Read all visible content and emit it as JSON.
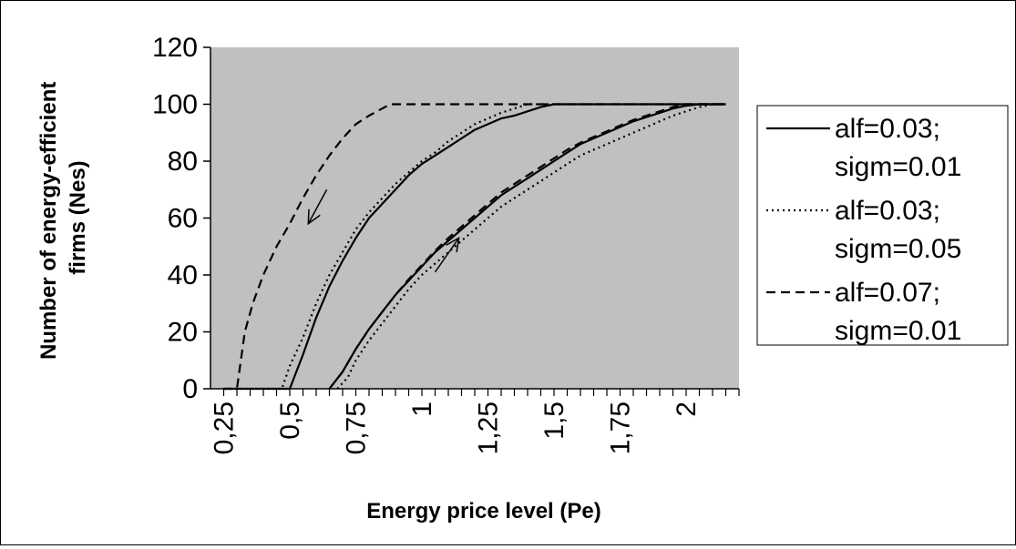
{
  "chart_data": {
    "type": "line",
    "xlabel": "Energy price level (Pe)",
    "ylabel": "Number of energy-efficient firms (Nes)",
    "ylim": [
      0,
      120
    ],
    "y_ticks": [
      "0",
      "20",
      "40",
      "60",
      "80",
      "100",
      "120"
    ],
    "x_tick_labels": [
      {
        "value": 0.25,
        "label": "0,25"
      },
      {
        "value": 0.5,
        "label": "0,5"
      },
      {
        "value": 0.75,
        "label": "0,75"
      },
      {
        "value": 1.0,
        "label": "1"
      },
      {
        "value": 1.25,
        "label": "1,25"
      },
      {
        "value": 1.5,
        "label": "1,5"
      },
      {
        "value": 1.75,
        "label": "1,75"
      },
      {
        "value": 2.0,
        "label": "2"
      }
    ],
    "xlim": [
      0.2,
      2.2
    ],
    "grid": false,
    "plot_background": "#c0c0c0",
    "legend_position": "right",
    "series": [
      {
        "name": "alf=0.03; sigm=0.01",
        "legend_lines": [
          "alf=0.03;",
          "sigm=0.01"
        ],
        "style": "solid",
        "color": "#000000",
        "curves": [
          [
            [
              0.25,
              0
            ],
            [
              0.5,
              0
            ],
            [
              0.55,
              12
            ],
            [
              0.6,
              25
            ],
            [
              0.65,
              36
            ],
            [
              0.7,
              45
            ],
            [
              0.75,
              53
            ],
            [
              0.8,
              60
            ],
            [
              0.85,
              65
            ],
            [
              0.9,
              70
            ],
            [
              0.95,
              75
            ],
            [
              1.0,
              79
            ],
            [
              1.05,
              82
            ],
            [
              1.1,
              85
            ],
            [
              1.15,
              88
            ],
            [
              1.2,
              91
            ],
            [
              1.25,
              93
            ],
            [
              1.3,
              95
            ],
            [
              1.35,
              96
            ],
            [
              1.4,
              97.5
            ],
            [
              1.45,
              99
            ],
            [
              1.5,
              100
            ],
            [
              2.15,
              100
            ]
          ],
          [
            [
              0.65,
              0
            ],
            [
              0.7,
              6
            ],
            [
              0.75,
              14
            ],
            [
              0.8,
              21
            ],
            [
              0.85,
              27
            ],
            [
              0.9,
              33
            ],
            [
              0.95,
              38
            ],
            [
              1.0,
              43
            ],
            [
              1.05,
              48
            ],
            [
              1.1,
              52
            ],
            [
              1.15,
              56
            ],
            [
              1.2,
              60
            ],
            [
              1.25,
              64
            ],
            [
              1.3,
              68
            ],
            [
              1.35,
              71
            ],
            [
              1.4,
              74
            ],
            [
              1.45,
              77
            ],
            [
              1.5,
              80
            ],
            [
              1.55,
              83
            ],
            [
              1.6,
              86
            ],
            [
              1.65,
              88
            ],
            [
              1.7,
              90
            ],
            [
              1.75,
              92
            ],
            [
              1.8,
              94
            ],
            [
              1.85,
              95.5
            ],
            [
              1.9,
              97
            ],
            [
              1.95,
              98.5
            ],
            [
              2.0,
              99.5
            ],
            [
              2.05,
              100
            ],
            [
              2.15,
              100
            ]
          ]
        ]
      },
      {
        "name": "alf=0.03; sigm=0.05",
        "legend_lines": [
          "alf=0.03;",
          "sigm=0.05"
        ],
        "style": "dotted",
        "color": "#000000",
        "curves": [
          [
            [
              0.25,
              0
            ],
            [
              0.47,
              0
            ],
            [
              0.5,
              8
            ],
            [
              0.55,
              18
            ],
            [
              0.6,
              30
            ],
            [
              0.65,
              40
            ],
            [
              0.7,
              48
            ],
            [
              0.75,
              56
            ],
            [
              0.8,
              62
            ],
            [
              0.85,
              67
            ],
            [
              0.9,
              72
            ],
            [
              0.95,
              76
            ],
            [
              1.0,
              80
            ],
            [
              1.05,
              83
            ],
            [
              1.1,
              87
            ],
            [
              1.15,
              90
            ],
            [
              1.2,
              93
            ],
            [
              1.25,
              95
            ],
            [
              1.3,
              97
            ],
            [
              1.35,
              98.5
            ],
            [
              1.4,
              100
            ],
            [
              2.15,
              100
            ]
          ],
          [
            [
              0.68,
              0
            ],
            [
              0.72,
              4
            ],
            [
              0.75,
              10
            ],
            [
              0.8,
              17
            ],
            [
              0.85,
              23
            ],
            [
              0.9,
              29
            ],
            [
              0.95,
              35
            ],
            [
              1.0,
              40
            ],
            [
              1.05,
              44
            ],
            [
              1.1,
              48
            ],
            [
              1.15,
              52
            ],
            [
              1.2,
              56
            ],
            [
              1.25,
              60
            ],
            [
              1.3,
              64
            ],
            [
              1.35,
              67
            ],
            [
              1.4,
              70
            ],
            [
              1.45,
              73
            ],
            [
              1.5,
              76
            ],
            [
              1.55,
              79
            ],
            [
              1.6,
              82
            ],
            [
              1.65,
              84
            ],
            [
              1.7,
              86
            ],
            [
              1.75,
              88
            ],
            [
              1.8,
              90
            ],
            [
              1.85,
              92
            ],
            [
              1.9,
              94
            ],
            [
              1.95,
              96
            ],
            [
              2.0,
              97.5
            ],
            [
              2.05,
              99
            ],
            [
              2.1,
              100
            ],
            [
              2.15,
              100
            ]
          ]
        ]
      },
      {
        "name": "alf=0.07; sigm=0.01",
        "legend_lines": [
          "alf=0.07;",
          "sigm=0.01"
        ],
        "style": "dashed",
        "color": "#000000",
        "curves": [
          [
            [
              0.25,
              0
            ],
            [
              0.3,
              0
            ],
            [
              0.33,
              20
            ],
            [
              0.36,
              30
            ],
            [
              0.4,
              40
            ],
            [
              0.45,
              50
            ],
            [
              0.5,
              58
            ],
            [
              0.55,
              67
            ],
            [
              0.6,
              75
            ],
            [
              0.65,
              82
            ],
            [
              0.7,
              88
            ],
            [
              0.75,
              93
            ],
            [
              0.8,
              96
            ],
            [
              0.85,
              98.5
            ],
            [
              0.88,
              100
            ],
            [
              2.15,
              100
            ]
          ],
          [
            [
              0.65,
              0
            ],
            [
              0.7,
              6
            ],
            [
              0.75,
              14
            ],
            [
              0.8,
              21
            ],
            [
              0.85,
              27
            ],
            [
              0.9,
              33
            ],
            [
              0.95,
              38.5
            ],
            [
              1.0,
              43.5
            ],
            [
              1.05,
              48.5
            ],
            [
              1.1,
              53
            ],
            [
              1.15,
              57
            ],
            [
              1.2,
              61
            ],
            [
              1.25,
              65
            ],
            [
              1.3,
              69
            ],
            [
              1.35,
              72
            ],
            [
              1.4,
              75
            ],
            [
              1.45,
              78
            ],
            [
              1.5,
              81
            ],
            [
              1.55,
              84
            ],
            [
              1.6,
              86.5
            ],
            [
              1.65,
              88.5
            ],
            [
              1.7,
              90.5
            ],
            [
              1.75,
              92.5
            ],
            [
              1.8,
              94.5
            ],
            [
              1.85,
              96
            ],
            [
              1.9,
              97.5
            ],
            [
              1.95,
              99
            ],
            [
              2.0,
              100
            ],
            [
              2.15,
              100
            ]
          ]
        ]
      }
    ],
    "annotations": [
      {
        "type": "arrow",
        "direction": "down-left",
        "from": [
          0.64,
          70
        ],
        "to": [
          0.57,
          58
        ]
      },
      {
        "type": "arrow",
        "direction": "up-right",
        "from": [
          1.05,
          41
        ],
        "to": [
          1.14,
          53
        ]
      }
    ]
  }
}
